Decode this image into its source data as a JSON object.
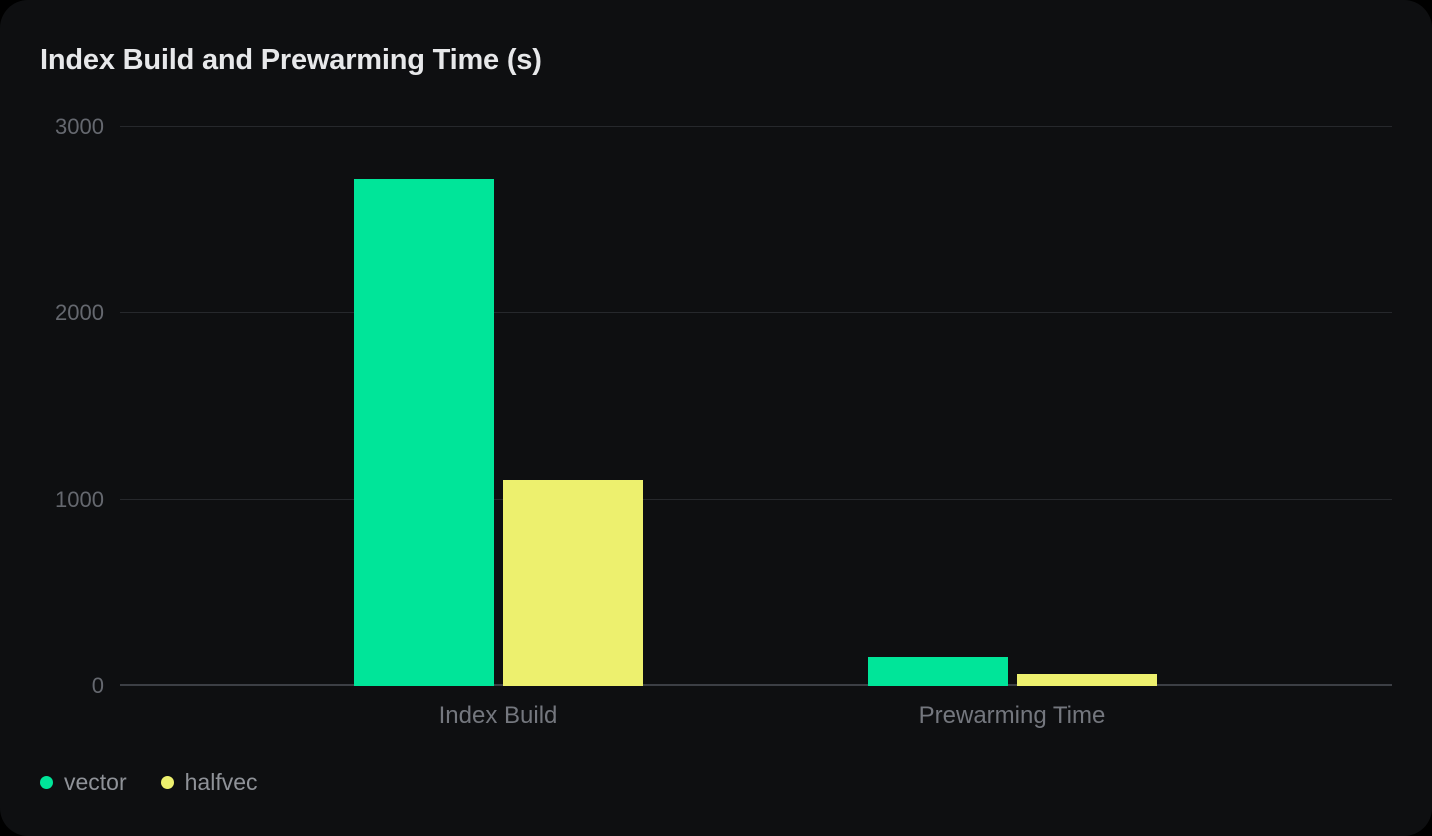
{
  "card": {
    "title": "Index Build and Prewarming Time (s)"
  },
  "chart_data": {
    "type": "bar",
    "title": "Index Build and Prewarming Time (s)",
    "categories": [
      "Index Build",
      "Prewarming Time"
    ],
    "series": [
      {
        "name": "vector",
        "color": "#00e599",
        "values": [
          2720,
          155
        ]
      },
      {
        "name": "halfvec",
        "color": "#edf06e",
        "values": [
          1105,
          65
        ]
      }
    ],
    "xlabel": "",
    "ylabel": "",
    "ylim": [
      0,
      3000
    ],
    "yticks": [
      0,
      1000,
      2000,
      3000
    ],
    "grid": true,
    "legend_position": "bottom-left",
    "background_color": "#0e0f11"
  },
  "legend": {
    "items": [
      {
        "label": "vector",
        "color": "#00e599"
      },
      {
        "label": "halfvec",
        "color": "#edf06e"
      }
    ]
  }
}
